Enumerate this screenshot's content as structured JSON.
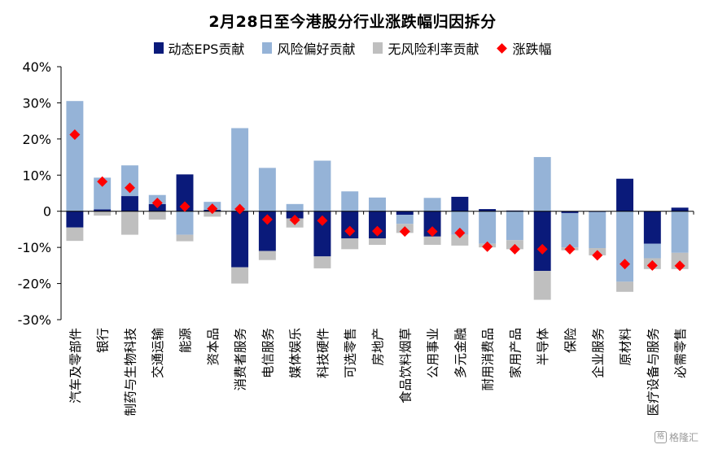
{
  "chart_data": {
    "type": "bar",
    "stacked": true,
    "title": "2月28日至今港股分行业涨跌幅归因拆分",
    "ylabel": "",
    "xlabel": "",
    "ylim": [
      -30,
      40
    ],
    "yticks": [
      40,
      30,
      20,
      10,
      0,
      -10,
      -20,
      -30
    ],
    "ytick_labels": [
      "40%",
      "30%",
      "20%",
      "10%",
      "0",
      "-10%",
      "-20%",
      "-30%"
    ],
    "grid": false,
    "legend_position": "top-center",
    "categories": [
      "汽车及零部件",
      "银行",
      "制药与生物科技",
      "交通运输",
      "能源",
      "资本品",
      "消费者服务",
      "电信服务",
      "媒体娱乐",
      "科技硬件",
      "可选零售",
      "房地产",
      "食品饮料烟草",
      "公用事业",
      "多元金融",
      "耐用消费品",
      "家用产品",
      "半导体",
      "保险",
      "企业服务",
      "原材料",
      "医疗设备与服务",
      "必需零售"
    ],
    "series": [
      {
        "name": "动态EPS贡献",
        "type": "bar",
        "color": "#0a1a7a",
        "values": [
          -4.5,
          0.5,
          4.2,
          2.0,
          10.2,
          0.4,
          -15.5,
          -11.0,
          -2.0,
          -12.5,
          -7.5,
          -7.5,
          -1.0,
          -7.0,
          4.0,
          0.6,
          0.2,
          -16.5,
          -0.5,
          -0.2,
          9.0,
          -9.0,
          1.0
        ]
      },
      {
        "name": "风险偏好贡献",
        "type": "bar",
        "color": "#95b3d7",
        "values": [
          30.5,
          8.8,
          8.5,
          2.5,
          -6.5,
          2.2,
          23.0,
          12.0,
          2.0,
          14.0,
          5.5,
          3.8,
          -2.5,
          3.7,
          -6.5,
          -9.0,
          -8.0,
          15.0,
          -9.5,
          -10.0,
          -19.5,
          -4.0,
          -11.5
        ]
      },
      {
        "name": "无风险利率贡献",
        "type": "bar",
        "color": "#bfbfbf",
        "values": [
          -3.7,
          -1.2,
          -6.5,
          -2.3,
          -1.8,
          -1.5,
          -4.5,
          -2.5,
          -2.5,
          -3.3,
          -3.0,
          -1.8,
          -2.5,
          -2.3,
          -3.0,
          -1.0,
          -2.5,
          -8.0,
          -0.8,
          -2.0,
          -2.8,
          -3.0,
          -4.5
        ]
      },
      {
        "name": "涨跌幅",
        "type": "scatter",
        "marker": "diamond",
        "color": "#ff0000",
        "values": [
          21.2,
          8.2,
          6.5,
          2.3,
          1.3,
          0.7,
          0.6,
          -2.3,
          -2.4,
          -2.6,
          -5.5,
          -5.5,
          -5.6,
          -5.6,
          -6.0,
          -9.8,
          -10.5,
          -10.5,
          -10.5,
          -12.2,
          -14.6,
          -15.0,
          -15.1
        ]
      }
    ]
  },
  "watermark": {
    "icon": "格",
    "text": "格隆汇"
  }
}
